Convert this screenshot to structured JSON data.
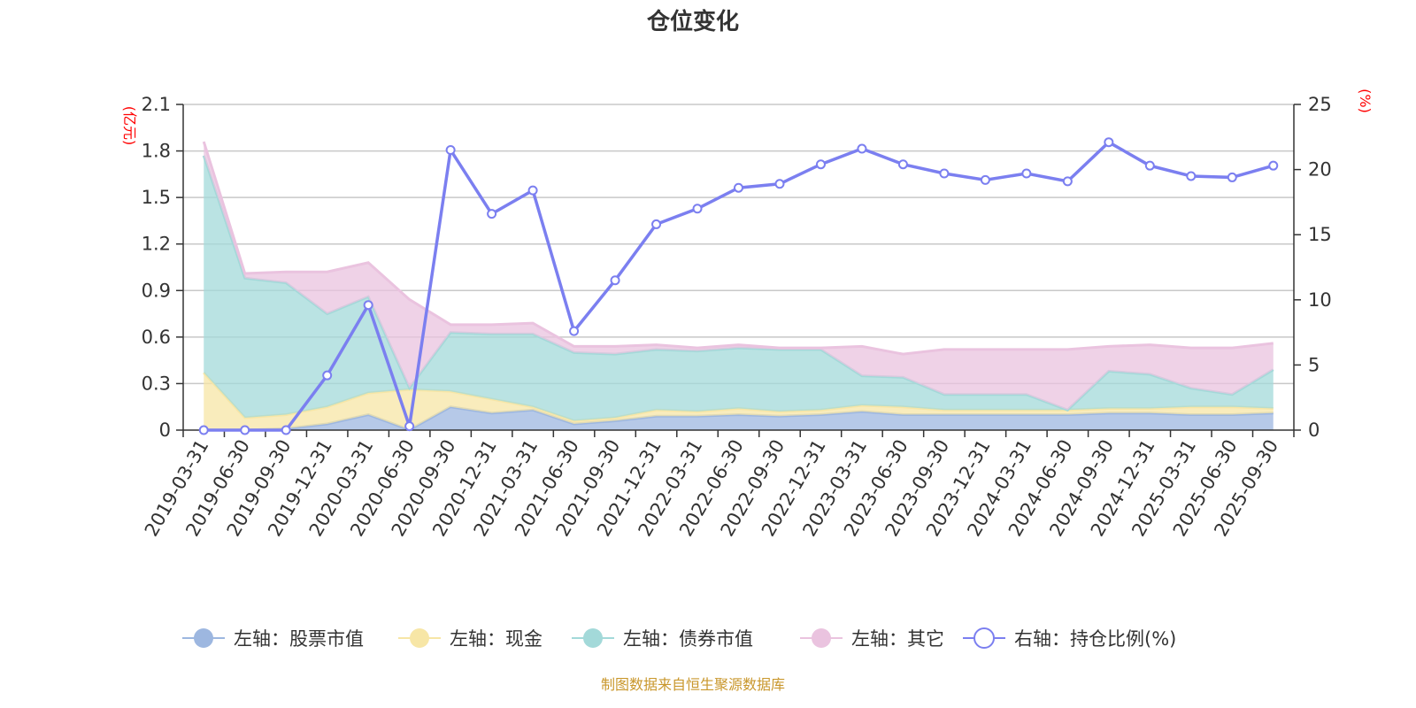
{
  "chart_data": {
    "type": "area",
    "title": "仓位变化",
    "left_unit": "(亿元)",
    "right_unit": "(%)",
    "categories": [
      "2019-03-31",
      "2019-06-30",
      "2019-09-30",
      "2019-12-31",
      "2020-03-31",
      "2020-06-30",
      "2020-09-30",
      "2020-12-31",
      "2021-03-31",
      "2021-06-30",
      "2021-09-30",
      "2021-12-31",
      "2022-03-31",
      "2022-06-30",
      "2022-09-30",
      "2022-12-31",
      "2023-03-31",
      "2023-06-30",
      "2023-09-30",
      "2023-12-31",
      "2024-03-31",
      "2024-06-30",
      "2024-09-30",
      "2024-12-31",
      "2025-03-31",
      "2025-06-30",
      "2025-09-30"
    ],
    "left_axis": {
      "min": 0,
      "max": 2.1,
      "ticks": [
        "0",
        "0.3",
        "0.6",
        "0.9",
        "1.2",
        "1.5",
        "1.8",
        "2.1"
      ]
    },
    "right_axis": {
      "min": 0,
      "max": 25,
      "ticks": [
        "0",
        "5",
        "10",
        "15",
        "20",
        "25"
      ]
    },
    "series": [
      {
        "name": "左轴：股票市值",
        "axis": "left",
        "type": "stacked-area",
        "color": "#9db7e0",
        "values": [
          0,
          0,
          0.01,
          0.04,
          0.1,
          0.002,
          0.15,
          0.11,
          0.13,
          0.04,
          0.06,
          0.09,
          0.09,
          0.1,
          0.09,
          0.1,
          0.12,
          0.1,
          0.1,
          0.1,
          0.1,
          0.1,
          0.11,
          0.11,
          0.1,
          0.1,
          0.11
        ]
      },
      {
        "name": "左轴：现金",
        "axis": "left",
        "type": "stacked-area",
        "color": "#f7e6a6",
        "values": [
          0.37,
          0.08,
          0.09,
          0.11,
          0.14,
          0.26,
          0.1,
          0.09,
          0.02,
          0.02,
          0.02,
          0.04,
          0.03,
          0.04,
          0.03,
          0.03,
          0.04,
          0.05,
          0.03,
          0.03,
          0.03,
          0.03,
          0.03,
          0.03,
          0.05,
          0.05,
          0.03
        ]
      },
      {
        "name": "左轴：债券市值",
        "axis": "left",
        "type": "stacked-area",
        "color": "#a3d9d9",
        "values": [
          1.4,
          0.9,
          0.85,
          0.6,
          0.62,
          0.01,
          0.38,
          0.42,
          0.47,
          0.44,
          0.41,
          0.39,
          0.39,
          0.39,
          0.4,
          0.39,
          0.19,
          0.19,
          0.1,
          0.1,
          0.1,
          0,
          0.24,
          0.22,
          0.12,
          0.08,
          0.25
        ]
      },
      {
        "name": "左轴：其它",
        "axis": "left",
        "type": "stacked-area",
        "color": "#eac3df",
        "values": [
          0.09,
          0.03,
          0.07,
          0.27,
          0.22,
          0.57,
          0.05,
          0.06,
          0.07,
          0.04,
          0.05,
          0.03,
          0.02,
          0.02,
          0.01,
          0.01,
          0.19,
          0.15,
          0.29,
          0.29,
          0.29,
          0.39,
          0.16,
          0.19,
          0.26,
          0.3,
          0.17
        ]
      },
      {
        "name": "右轴：持仓比例(%)",
        "axis": "right",
        "type": "line",
        "color": "#7b7ff0",
        "values": [
          0,
          0,
          0,
          4.2,
          9.6,
          0.3,
          21.5,
          16.6,
          18.4,
          7.6,
          11.5,
          15.8,
          17.0,
          18.6,
          18.9,
          20.4,
          21.6,
          20.4,
          19.7,
          19.2,
          19.7,
          19.1,
          22.1,
          20.3,
          19.5,
          19.4,
          20.3
        ]
      }
    ],
    "source": "制图数据来自恒生聚源数据库"
  }
}
